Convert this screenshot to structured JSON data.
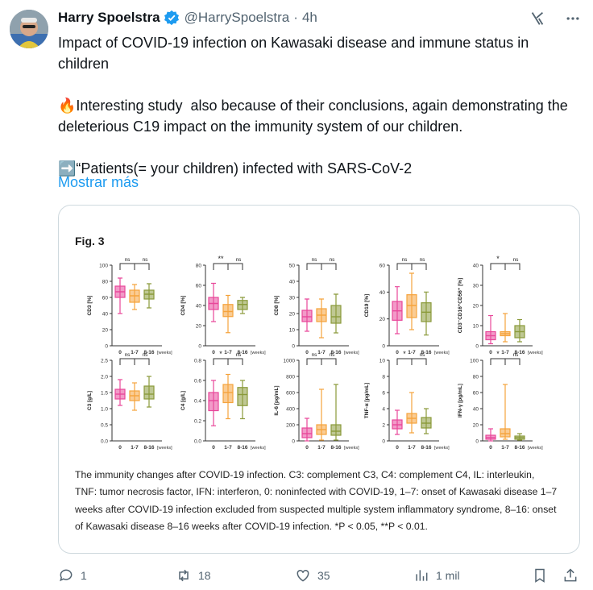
{
  "author": {
    "name": "Harry Spoelstra",
    "handle": "@HarrySpoelstra",
    "time": "4h"
  },
  "post": {
    "text": "Impact of COVID-19 infection on Kawasaki disease and immune status in children\n\n🔥Interesting study  also because of their conclusions, again demonstrating the deleterious C19 impact on the immunity system of our children.\n\n➡️“Patients(= your children) infected with SARS-CoV-2",
    "more_label": "Mostrar más"
  },
  "figure": {
    "title": "Fig. 3",
    "caption": "The immunity changes after COVID-19 infection. C3: complement C3, C4: complement C4, IL: interleukin, TNF: tumor necrosis factor, IFN: interferon, 0: noninfected with COVID-19, 1–7: onset of Kawasaki disease 1–7 weeks after COVID-19 infection excluded from suspected multiple system inflammatory syndrome, 8–16: onset of Kawasaki disease 8–16 weeks after COVID-19 infection. *P < 0.05, **P < 0.01."
  },
  "actions": {
    "replies": "1",
    "reposts": "18",
    "likes": "35",
    "views": "1 mil"
  },
  "colors": {
    "group0": "#e8479a",
    "group1": "#f5a33c",
    "group2": "#8a9a3a",
    "link": "#1d9bf0",
    "muted": "#536471"
  },
  "chart_data": [
    {
      "type": "box",
      "ylabel": "CD3 [%]",
      "yticks": [
        "0",
        "20",
        "40",
        "60",
        "80",
        "100"
      ],
      "ylim": [
        0,
        100
      ],
      "categories": [
        "0",
        "1-7",
        "8-16"
      ],
      "x_unit": "[weeks]",
      "sig": [
        "ns",
        "ns"
      ],
      "boxes": [
        {
          "min": 40,
          "q1": 60,
          "median": 67,
          "q3": 74,
          "max": 84
        },
        {
          "min": 45,
          "q1": 54,
          "median": 62,
          "q3": 69,
          "max": 76
        },
        {
          "min": 47,
          "q1": 58,
          "median": 64,
          "q3": 69,
          "max": 77
        }
      ]
    },
    {
      "type": "box",
      "ylabel": "CD4 [%]",
      "yticks": [
        "0",
        "20",
        "40",
        "60",
        "80"
      ],
      "ylim": [
        0,
        80
      ],
      "categories": [
        "0",
        "1-7",
        "8-16"
      ],
      "x_unit": "[weeks]",
      "sig": [
        "**",
        "ns"
      ],
      "boxes": [
        {
          "min": 24,
          "q1": 36,
          "median": 42,
          "q3": 48,
          "max": 62
        },
        {
          "min": 13,
          "q1": 29,
          "median": 34,
          "q3": 41,
          "max": 50
        },
        {
          "min": 32,
          "q1": 36,
          "median": 41,
          "q3": 45,
          "max": 48
        }
      ]
    },
    {
      "type": "box",
      "ylabel": "CD8 [%]",
      "yticks": [
        "0",
        "10",
        "20",
        "30",
        "40",
        "50"
      ],
      "ylim": [
        0,
        50
      ],
      "categories": [
        "0",
        "1-7",
        "8-16"
      ],
      "x_unit": "[weeks]",
      "sig": [
        "ns",
        "ns"
      ],
      "boxes": [
        {
          "min": 9,
          "q1": 15,
          "median": 18,
          "q3": 22,
          "max": 29
        },
        {
          "min": 5,
          "q1": 15,
          "median": 19,
          "q3": 23,
          "max": 29
        },
        {
          "min": 8,
          "q1": 14,
          "median": 18,
          "q3": 25,
          "max": 32
        }
      ]
    },
    {
      "type": "box",
      "ylabel": "CD19 [%]",
      "yticks": [
        "0",
        "20",
        "40",
        "60"
      ],
      "ylim": [
        0,
        60
      ],
      "categories": [
        "0",
        "1-7",
        "8-16"
      ],
      "x_unit": "[weeks]",
      "sig": [
        "ns",
        "ns"
      ],
      "boxes": [
        {
          "min": 9,
          "q1": 19,
          "median": 26,
          "q3": 33,
          "max": 44
        },
        {
          "min": 12,
          "q1": 21,
          "median": 30,
          "q3": 38,
          "max": 54
        },
        {
          "min": 8,
          "q1": 18,
          "median": 25,
          "q3": 32,
          "max": 40
        }
      ]
    },
    {
      "type": "box",
      "ylabel": "CD3⁻CD16⁺CD56⁺ [%]",
      "yticks": [
        "0",
        "10",
        "20",
        "30",
        "40"
      ],
      "ylim": [
        0,
        40
      ],
      "categories": [
        "0",
        "1-7",
        "8-16"
      ],
      "x_unit": "[weeks]",
      "sig": [
        "*",
        "ns"
      ],
      "boxes": [
        {
          "min": 1,
          "q1": 3,
          "median": 5,
          "q3": 7,
          "max": 15
        },
        {
          "min": 2,
          "q1": 5,
          "median": 6,
          "q3": 7,
          "max": 16
        },
        {
          "min": 2,
          "q1": 4,
          "median": 7,
          "q3": 10,
          "max": 13
        }
      ]
    },
    {
      "type": "box",
      "ylabel": "C3 [g/L]",
      "yticks": [
        "0.0",
        "0.5",
        "1.0",
        "1.5",
        "2.0",
        "2.5"
      ],
      "ylim": [
        0,
        2.5
      ],
      "categories": [
        "0",
        "1-7",
        "8-16"
      ],
      "x_unit": "[weeks]",
      "sig": [
        "ns",
        "ns"
      ],
      "boxes": [
        {
          "min": 1.1,
          "q1": 1.3,
          "median": 1.45,
          "q3": 1.6,
          "max": 1.9
        },
        {
          "min": 0.95,
          "q1": 1.25,
          "median": 1.4,
          "q3": 1.55,
          "max": 1.8
        },
        {
          "min": 1.05,
          "q1": 1.3,
          "median": 1.45,
          "q3": 1.7,
          "max": 2.0
        }
      ]
    },
    {
      "type": "box",
      "ylabel": "C4 [g/L]",
      "yticks": [
        "0.0",
        "0.2",
        "0.4",
        "0.6",
        "0.8"
      ],
      "ylim": [
        0,
        0.8
      ],
      "categories": [
        "0",
        "1-7",
        "8-16"
      ],
      "x_unit": "[weeks]",
      "sig": [
        "*",
        "ns"
      ],
      "boxes": [
        {
          "min": 0.15,
          "q1": 0.3,
          "median": 0.4,
          "q3": 0.48,
          "max": 0.6
        },
        {
          "min": 0.22,
          "q1": 0.38,
          "median": 0.48,
          "q3": 0.56,
          "max": 0.66
        },
        {
          "min": 0.22,
          "q1": 0.35,
          "median": 0.46,
          "q3": 0.53,
          "max": 0.6
        }
      ]
    },
    {
      "type": "box",
      "ylabel": "IL-6 [pg/mL]",
      "yticks": [
        "0",
        "200",
        "400",
        "600",
        "800",
        "1000"
      ],
      "ylim": [
        0,
        1000
      ],
      "categories": [
        "0",
        "1-7",
        "8-16"
      ],
      "x_unit": "[weeks]",
      "sig": [
        "ns",
        "ns"
      ],
      "boxes": [
        {
          "min": 0,
          "q1": 40,
          "median": 90,
          "q3": 160,
          "max": 280
        },
        {
          "min": 10,
          "q1": 80,
          "median": 140,
          "q3": 200,
          "max": 640
        },
        {
          "min": 10,
          "q1": 70,
          "median": 120,
          "q3": 200,
          "max": 700
        }
      ]
    },
    {
      "type": "box",
      "ylabel": "TNF-α [pg/mL]",
      "yticks": [
        "0",
        "2",
        "4",
        "6",
        "8",
        "10"
      ],
      "ylim": [
        0,
        10
      ],
      "categories": [
        "0",
        "1-7",
        "8-16"
      ],
      "x_unit": "[weeks]",
      "sig": [
        "*",
        "ns"
      ],
      "boxes": [
        {
          "min": 0.8,
          "q1": 1.5,
          "median": 2.0,
          "q3": 2.6,
          "max": 3.8
        },
        {
          "min": 1.0,
          "q1": 2.2,
          "median": 2.8,
          "q3": 3.4,
          "max": 6.0
        },
        {
          "min": 0.9,
          "q1": 1.6,
          "median": 2.2,
          "q3": 2.9,
          "max": 4.0
        }
      ]
    },
    {
      "type": "box",
      "ylabel": "IFN-γ [pg/mL]",
      "yticks": [
        "0",
        "20",
        "40",
        "60",
        "80",
        "100"
      ],
      "ylim": [
        0,
        100
      ],
      "categories": [
        "0",
        "1-7",
        "8-16"
      ],
      "x_unit": "[weeks]",
      "sig": [
        "*",
        "ns"
      ],
      "boxes": [
        {
          "min": 0,
          "q1": 2,
          "median": 4,
          "q3": 7,
          "max": 15
        },
        {
          "min": 2,
          "q1": 5,
          "median": 9,
          "q3": 15,
          "max": 70
        },
        {
          "min": 1,
          "q1": 2,
          "median": 4,
          "q3": 6,
          "max": 9
        }
      ]
    }
  ]
}
